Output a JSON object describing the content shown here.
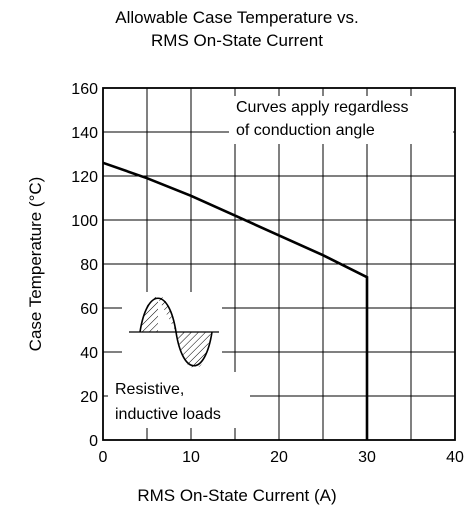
{
  "chart_data": {
    "type": "line",
    "title_line1": "Allowable Case Temperature vs.",
    "title_line2": "RMS On-State Current",
    "xlabel": "RMS On-State Current  (A)",
    "ylabel": "Case Temperature  (°C)",
    "xlim": [
      0,
      40
    ],
    "ylim": [
      0,
      160
    ],
    "xticks": [
      0,
      10,
      20,
      30,
      40
    ],
    "yticks": [
      0,
      20,
      40,
      60,
      80,
      100,
      120,
      140,
      160
    ],
    "grid": true,
    "series": [
      {
        "x": [
          0,
          5,
          10,
          15,
          20,
          25,
          30,
          30
        ],
        "y": [
          126,
          119,
          111,
          102,
          93,
          84,
          74,
          0
        ]
      }
    ],
    "annotations": {
      "top_note_line1": "Curves apply regardless",
      "top_note_line2": "of conduction angle",
      "load_note_line1": "Resistive,",
      "load_note_line2": "inductive loads"
    },
    "inset_icon": "half-wave-sine-waveform-icon"
  }
}
